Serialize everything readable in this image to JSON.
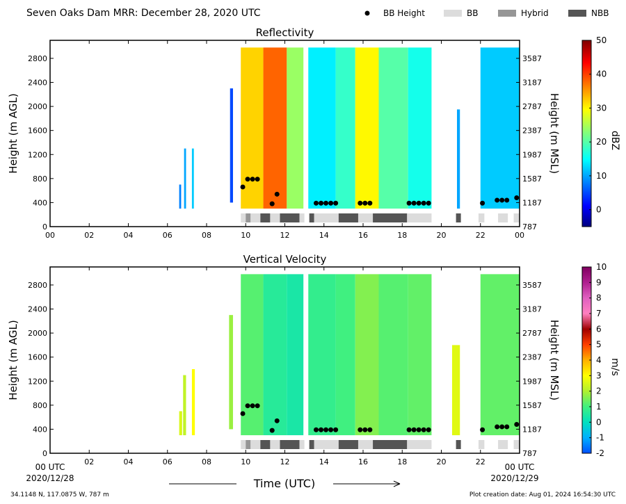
{
  "header": {
    "title": "Seven Oaks Dam MRR:  December 28, 2020 UTC",
    "legend": [
      {
        "label": "BB Height",
        "kind": "dot",
        "color": "#000000"
      },
      {
        "label": "BB",
        "kind": "bar",
        "color": "#dcdcdc"
      },
      {
        "label": "Hybrid",
        "kind": "bar",
        "color": "#969696"
      },
      {
        "label": "NBB",
        "kind": "bar",
        "color": "#555555"
      }
    ]
  },
  "xaxis": {
    "ticks": [
      "00",
      "02",
      "04",
      "06",
      "08",
      "10",
      "12",
      "14",
      "16",
      "18",
      "20",
      "22",
      "00"
    ],
    "start_label": "00 UTC",
    "end_label": "00 UTC",
    "start_date": "2020/12/28",
    "end_date": "2020/12/29",
    "title": "Time (UTC)"
  },
  "footer": {
    "location": "34.1148 N, 117.0875 W, 787 m",
    "created": "Plot creation date: Aug 01, 2024 16:54:30 UTC"
  },
  "chart_data": [
    {
      "type": "heatmap",
      "title": "Reflectivity",
      "ylabel": "Height (m AGL)",
      "ylabel_right": "Height (m MSL)",
      "yticks": [
        0,
        400,
        800,
        1200,
        1600,
        2000,
        2400,
        2800
      ],
      "yticks_right": [
        787,
        1187,
        1587,
        1987,
        2387,
        2787,
        3187,
        3587
      ],
      "ylim": [
        0,
        3100
      ],
      "xlim": [
        0,
        24
      ],
      "colorbar": {
        "label": "dBZ",
        "min": -5,
        "max": 50,
        "ticks": [
          0,
          10,
          20,
          30,
          40,
          50
        ],
        "colormap": "jet"
      },
      "echo_segments": [
        {
          "x0": 6.6,
          "x1": 6.7,
          "top": 700,
          "base": 300,
          "level": 8
        },
        {
          "x0": 6.85,
          "x1": 6.95,
          "top": 1300,
          "base": 300,
          "level": 10
        },
        {
          "x0": 7.25,
          "x1": 7.35,
          "top": 1300,
          "base": 300,
          "level": 12
        },
        {
          "x0": 9.2,
          "x1": 9.35,
          "top": 2300,
          "base": 400,
          "level": 5
        },
        {
          "x0": 9.75,
          "x1": 10.9,
          "top": 2980,
          "base": 300,
          "level": 32
        },
        {
          "x0": 10.9,
          "x1": 12.1,
          "top": 2980,
          "base": 300,
          "level": 38
        },
        {
          "x0": 12.1,
          "x1": 12.95,
          "top": 2980,
          "base": 300,
          "level": 24
        },
        {
          "x0": 13.2,
          "x1": 14.6,
          "top": 2980,
          "base": 300,
          "level": 14
        },
        {
          "x0": 14.6,
          "x1": 15.6,
          "top": 2980,
          "base": 300,
          "level": 18
        },
        {
          "x0": 15.6,
          "x1": 16.8,
          "top": 2980,
          "base": 300,
          "level": 30
        },
        {
          "x0": 16.8,
          "x1": 18.3,
          "top": 2980,
          "base": 300,
          "level": 20
        },
        {
          "x0": 18.3,
          "x1": 19.5,
          "top": 2980,
          "base": 300,
          "level": 16
        },
        {
          "x0": 20.8,
          "x1": 20.95,
          "top": 1950,
          "base": 300,
          "level": 10
        },
        {
          "x0": 22.0,
          "x1": 24.0,
          "top": 2980,
          "base": 300,
          "level": 12
        }
      ],
      "bb_height_points": [
        {
          "x": 9.85,
          "y": 660
        },
        {
          "x": 10.1,
          "y": 790
        },
        {
          "x": 10.35,
          "y": 790
        },
        {
          "x": 10.6,
          "y": 790
        },
        {
          "x": 11.35,
          "y": 380
        },
        {
          "x": 11.6,
          "y": 540
        },
        {
          "x": 13.6,
          "y": 390
        },
        {
          "x": 13.85,
          "y": 390
        },
        {
          "x": 14.1,
          "y": 390
        },
        {
          "x": 14.35,
          "y": 390
        },
        {
          "x": 14.6,
          "y": 390
        },
        {
          "x": 15.85,
          "y": 390
        },
        {
          "x": 16.1,
          "y": 390
        },
        {
          "x": 16.35,
          "y": 390
        },
        {
          "x": 18.35,
          "y": 390
        },
        {
          "x": 18.6,
          "y": 390
        },
        {
          "x": 18.85,
          "y": 390
        },
        {
          "x": 19.1,
          "y": 390
        },
        {
          "x": 19.35,
          "y": 390
        },
        {
          "x": 22.1,
          "y": 390
        },
        {
          "x": 22.85,
          "y": 440
        },
        {
          "x": 23.1,
          "y": 440
        },
        {
          "x": 23.35,
          "y": 440
        },
        {
          "x": 23.85,
          "y": 480
        }
      ],
      "bb_type_segments": [
        {
          "x0": 9.75,
          "x1": 10.0,
          "type": "BB"
        },
        {
          "x0": 10.0,
          "x1": 10.25,
          "type": "Hybrid"
        },
        {
          "x0": 10.25,
          "x1": 10.75,
          "type": "BB"
        },
        {
          "x0": 10.75,
          "x1": 11.25,
          "type": "NBB"
        },
        {
          "x0": 11.25,
          "x1": 11.75,
          "type": "BB"
        },
        {
          "x0": 11.75,
          "x1": 12.75,
          "type": "NBB"
        },
        {
          "x0": 12.75,
          "x1": 13.0,
          "type": "BB"
        },
        {
          "x0": 13.25,
          "x1": 13.5,
          "type": "NBB"
        },
        {
          "x0": 13.5,
          "x1": 14.75,
          "type": "BB"
        },
        {
          "x0": 14.75,
          "x1": 15.75,
          "type": "NBB"
        },
        {
          "x0": 15.75,
          "x1": 16.5,
          "type": "BB"
        },
        {
          "x0": 16.5,
          "x1": 18.25,
          "type": "NBB"
        },
        {
          "x0": 18.25,
          "x1": 19.5,
          "type": "BB"
        },
        {
          "x0": 20.75,
          "x1": 21.0,
          "type": "NBB"
        },
        {
          "x0": 21.9,
          "x1": 22.2,
          "type": "BB"
        },
        {
          "x0": 22.9,
          "x1": 23.4,
          "type": "BB"
        },
        {
          "x0": 23.7,
          "x1": 24.0,
          "type": "BB"
        }
      ]
    },
    {
      "type": "heatmap",
      "title": "Vertical Velocity",
      "ylabel": "Height (m AGL)",
      "ylabel_right": "Height (m MSL)",
      "yticks": [
        0,
        400,
        800,
        1200,
        1600,
        2000,
        2400,
        2800
      ],
      "yticks_right": [
        787,
        1187,
        1587,
        1987,
        2387,
        2787,
        3187,
        3587
      ],
      "ylim": [
        0,
        3100
      ],
      "xlim": [
        0,
        24
      ],
      "colorbar": {
        "label": "m/s",
        "min": -2,
        "max": 10,
        "ticks": [
          -2,
          -1,
          0,
          1,
          2,
          3,
          4,
          5,
          6,
          7,
          8,
          9,
          10
        ],
        "colormap": "velocity"
      },
      "echo_segments": [
        {
          "x0": 6.6,
          "x1": 6.75,
          "top": 700,
          "base": 300,
          "level": 2.5
        },
        {
          "x0": 6.8,
          "x1": 6.95,
          "top": 1300,
          "base": 300,
          "level": 2.2
        },
        {
          "x0": 7.25,
          "x1": 7.4,
          "top": 1400,
          "base": 300,
          "level": 3
        },
        {
          "x0": 9.15,
          "x1": 9.35,
          "top": 2300,
          "base": 400,
          "level": 1.8
        },
        {
          "x0": 9.75,
          "x1": 10.9,
          "top": 2980,
          "base": 300,
          "level": 1.2
        },
        {
          "x0": 10.9,
          "x1": 12.1,
          "top": 2980,
          "base": 300,
          "level": 0.6
        },
        {
          "x0": 12.1,
          "x1": 12.95,
          "top": 2980,
          "base": 300,
          "level": 0.4
        },
        {
          "x0": 13.2,
          "x1": 14.6,
          "top": 2980,
          "base": 300,
          "level": 0.8
        },
        {
          "x0": 14.6,
          "x1": 15.6,
          "top": 2980,
          "base": 300,
          "level": 1.0
        },
        {
          "x0": 15.6,
          "x1": 16.8,
          "top": 2980,
          "base": 300,
          "level": 1.6
        },
        {
          "x0": 16.8,
          "x1": 18.3,
          "top": 2980,
          "base": 300,
          "level": 1.2
        },
        {
          "x0": 18.3,
          "x1": 19.5,
          "top": 2980,
          "base": 300,
          "level": 1.3
        },
        {
          "x0": 20.55,
          "x1": 20.95,
          "top": 1800,
          "base": 300,
          "level": 2.6
        },
        {
          "x0": 22.0,
          "x1": 24.0,
          "top": 2980,
          "base": 300,
          "level": 1.3
        }
      ],
      "bb_height_points": [
        {
          "x": 9.85,
          "y": 660
        },
        {
          "x": 10.1,
          "y": 790
        },
        {
          "x": 10.35,
          "y": 790
        },
        {
          "x": 10.6,
          "y": 790
        },
        {
          "x": 11.35,
          "y": 380
        },
        {
          "x": 11.6,
          "y": 540
        },
        {
          "x": 13.6,
          "y": 390
        },
        {
          "x": 13.85,
          "y": 390
        },
        {
          "x": 14.1,
          "y": 390
        },
        {
          "x": 14.35,
          "y": 390
        },
        {
          "x": 14.6,
          "y": 390
        },
        {
          "x": 15.85,
          "y": 390
        },
        {
          "x": 16.1,
          "y": 390
        },
        {
          "x": 16.35,
          "y": 390
        },
        {
          "x": 18.35,
          "y": 390
        },
        {
          "x": 18.6,
          "y": 390
        },
        {
          "x": 18.85,
          "y": 390
        },
        {
          "x": 19.1,
          "y": 390
        },
        {
          "x": 19.35,
          "y": 390
        },
        {
          "x": 22.1,
          "y": 390
        },
        {
          "x": 22.85,
          "y": 440
        },
        {
          "x": 23.1,
          "y": 440
        },
        {
          "x": 23.35,
          "y": 440
        },
        {
          "x": 23.85,
          "y": 480
        }
      ],
      "bb_type_segments": [
        {
          "x0": 9.75,
          "x1": 10.0,
          "type": "BB"
        },
        {
          "x0": 10.0,
          "x1": 10.25,
          "type": "Hybrid"
        },
        {
          "x0": 10.25,
          "x1": 10.75,
          "type": "BB"
        },
        {
          "x0": 10.75,
          "x1": 11.25,
          "type": "NBB"
        },
        {
          "x0": 11.25,
          "x1": 11.75,
          "type": "BB"
        },
        {
          "x0": 11.75,
          "x1": 12.75,
          "type": "NBB"
        },
        {
          "x0": 12.75,
          "x1": 13.0,
          "type": "BB"
        },
        {
          "x0": 13.25,
          "x1": 13.5,
          "type": "NBB"
        },
        {
          "x0": 13.5,
          "x1": 14.75,
          "type": "BB"
        },
        {
          "x0": 14.75,
          "x1": 15.75,
          "type": "NBB"
        },
        {
          "x0": 15.75,
          "x1": 16.5,
          "type": "BB"
        },
        {
          "x0": 16.5,
          "x1": 18.25,
          "type": "NBB"
        },
        {
          "x0": 18.25,
          "x1": 19.5,
          "type": "BB"
        },
        {
          "x0": 20.75,
          "x1": 21.0,
          "type": "NBB"
        },
        {
          "x0": 21.9,
          "x1": 22.2,
          "type": "BB"
        },
        {
          "x0": 22.9,
          "x1": 23.4,
          "type": "BB"
        },
        {
          "x0": 23.7,
          "x1": 24.0,
          "type": "BB"
        }
      ]
    }
  ]
}
